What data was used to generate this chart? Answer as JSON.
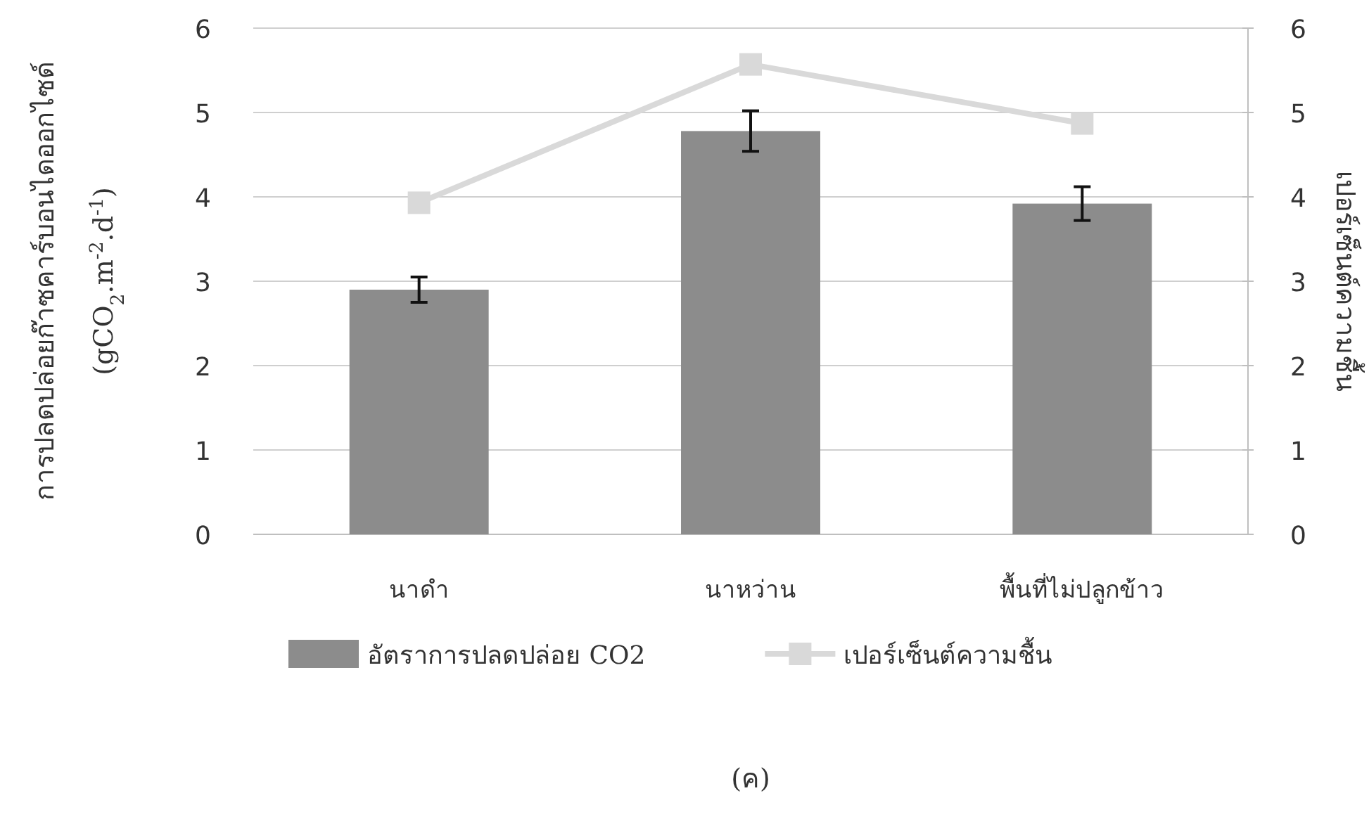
{
  "chart_data": {
    "type": "bar",
    "ylabel": "การปลดปล่อยก๊าซคาร์บอนไดออกไซด์\n(gCO$_{2}$.m$^{-2}$.d$^{-1}$)",
    "y2label": "เปอร์เซ็นต์ความชื้น",
    "categories": [
      "นาดำ",
      "นาหว่าน",
      "พื้นที่ไม่ปลูกข้าว"
    ],
    "series": [
      {
        "name": "อัตราการปลดปล่อย CO2",
        "color": "#8c8c8c",
        "values": [
          2.9,
          4.78,
          3.92
        ],
        "errors": [
          0.15,
          0.24,
          0.2
        ]
      },
      {
        "name": "เปอร์เซ็นต์ความชื้น",
        "type": "line",
        "axis": "y2",
        "color": "#d9d9d9",
        "marker": "square",
        "values": [
          3.93,
          5.57,
          4.87
        ]
      }
    ],
    "ylim": [
      0,
      6
    ],
    "yticks": [
      0,
      1,
      2,
      3,
      4,
      5,
      6
    ],
    "y2lim": [
      0,
      6
    ],
    "y2ticks": [
      0,
      1,
      2,
      3,
      4,
      5,
      6
    ],
    "grid": "y",
    "legend": "bottom",
    "annotations": [
      "(ค)"
    ]
  }
}
